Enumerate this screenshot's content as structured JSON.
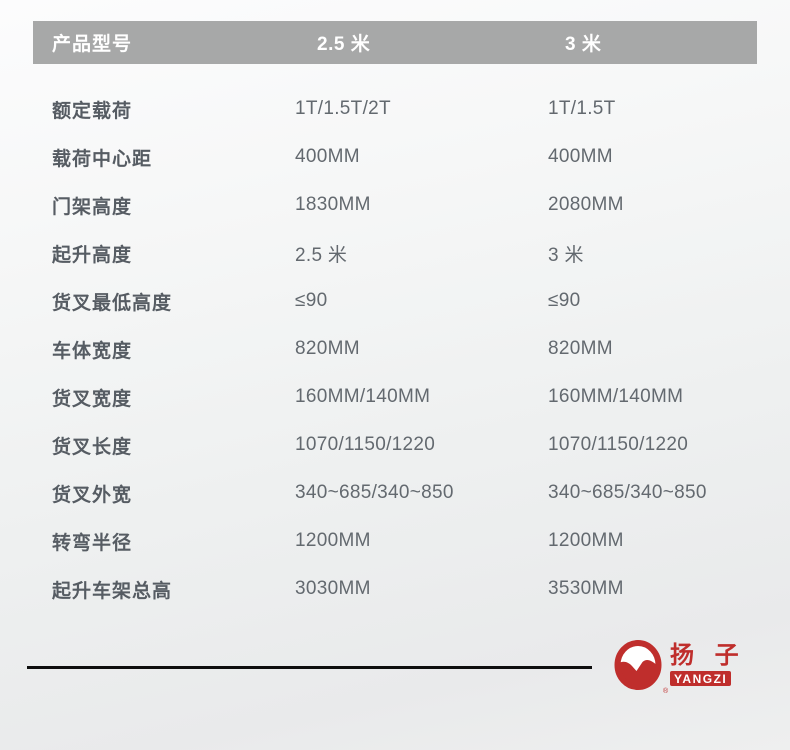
{
  "colors": {
    "header_bg": "#a7a8a8",
    "header_text": "#ffffff",
    "label_text": "#565c63",
    "value_text": "#63696f",
    "divider": "#0e0e0e",
    "logo_red": "#bf2e2c"
  },
  "table": {
    "header": {
      "col1": "产品型号",
      "col2": "2.5 米",
      "col3": "3 米"
    },
    "rows": [
      {
        "label": "额定载荷",
        "col2": "1T/1.5T/2T",
        "col3": "1T/1.5T"
      },
      {
        "label": "载荷中心距",
        "col2": "400MM",
        "col3": "400MM"
      },
      {
        "label": "门架高度",
        "col2": "1830MM",
        "col3": "2080MM"
      },
      {
        "label": "起升高度",
        "col2": "2.5 米",
        "col3": "3 米"
      },
      {
        "label": "货叉最低高度",
        "col2": "≤90",
        "col3": "≤90"
      },
      {
        "label": "车体宽度",
        "col2": "820MM",
        "col3": "820MM"
      },
      {
        "label": "货叉宽度",
        "col2": "160MM/140MM",
        "col3": "160MM/140MM"
      },
      {
        "label": "货叉长度",
        "col2": "1070/1150/1220",
        "col3": "1070/1150/1220"
      },
      {
        "label": "货叉外宽",
        "col2": "340~685/340~850",
        "col3": "340~685/340~850"
      },
      {
        "label": "转弯半径",
        "col2": "1200MM",
        "col3": "1200MM"
      },
      {
        "label": "起升车架总高",
        "col2": "3030MM",
        "col3": "3530MM"
      }
    ]
  },
  "logo": {
    "brand_cn": "扬 子",
    "brand_en": "YANGZI",
    "registered_mark": "®"
  }
}
